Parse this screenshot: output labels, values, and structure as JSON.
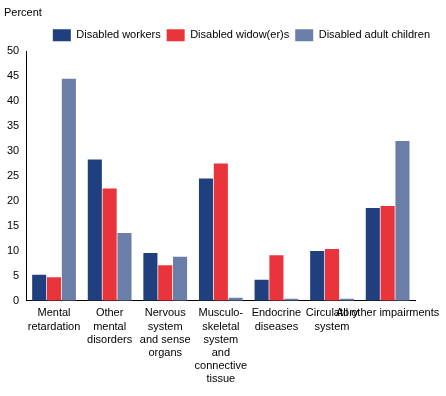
{
  "chart_data": {
    "type": "bar",
    "ylabel": "Percent",
    "categories": [
      "Mental\nretardation",
      "Other\nmental\ndisorders",
      "Nervous\nsystem\nand sense\norgans",
      "Musculo-\nskeletal\nsystem\nand\nconnective\ntissue",
      "Endocrine\ndiseases",
      "Circulatory\nsystem",
      "All other impairments"
    ],
    "series": [
      {
        "name": "Disabled workers",
        "color": "#1f3f7f",
        "values": [
          5.2,
          28.3,
          9.6,
          24.5,
          4.2,
          10.0,
          18.6
        ]
      },
      {
        "name": "Disabled widow(er)s",
        "color": "#e8343a",
        "values": [
          4.7,
          22.5,
          7.1,
          27.5,
          9.1,
          10.4,
          19.0
        ]
      },
      {
        "name": "Disabled adult children",
        "color": "#6a7ea8",
        "values": [
          44.5,
          13.6,
          8.8,
          0.6,
          0.4,
          0.4,
          32.0
        ]
      }
    ],
    "ylim": [
      0,
      50
    ],
    "yticks": [
      0,
      5,
      10,
      15,
      20,
      25,
      30,
      35,
      40,
      45,
      50
    ],
    "grid": false,
    "legend": "upper right"
  }
}
